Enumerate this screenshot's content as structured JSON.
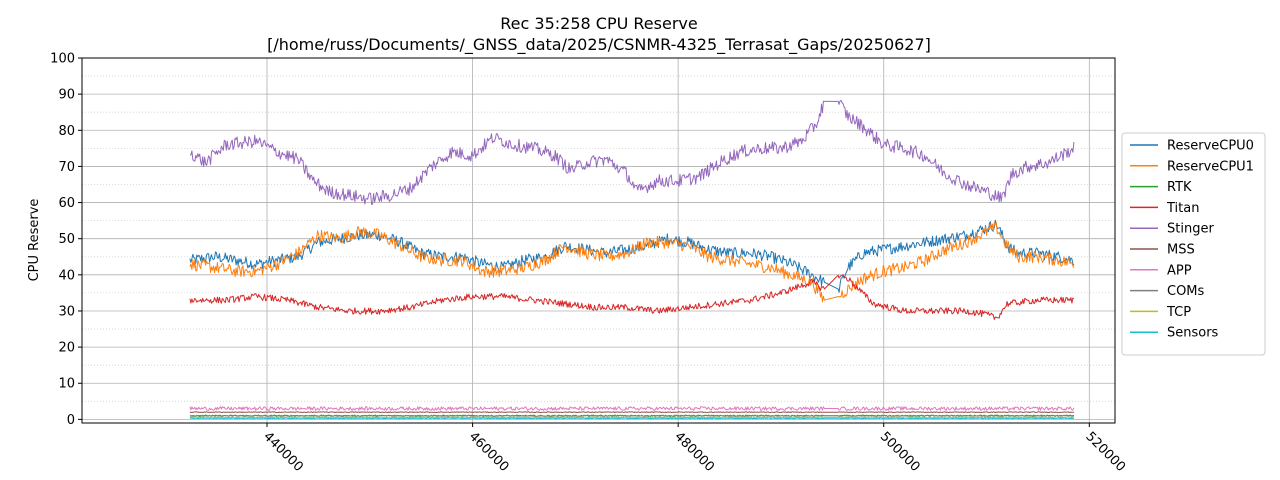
{
  "chart_data": {
    "type": "line",
    "title_line1": "Rec 35:258 CPU Reserve",
    "title_line2": "[/home/russ/Documents/_GNSS_data/2025/CSNMR-4325_Terrasat_Gaps/20250627]",
    "xlabel": "",
    "ylabel": "CPU Reserve",
    "xlim": [
      422000,
      522500
    ],
    "ylim": [
      -1,
      100
    ],
    "x_ticks": [
      440000,
      460000,
      480000,
      500000,
      520000
    ],
    "x_tick_labels": [
      "440000",
      "460000",
      "480000",
      "500000",
      "520000"
    ],
    "y_ticks": [
      0,
      10,
      20,
      30,
      40,
      50,
      60,
      70,
      80,
      90,
      100
    ],
    "y_tick_labels": [
      "0",
      "10",
      "20",
      "30",
      "40",
      "50",
      "60",
      "70",
      "80",
      "90",
      "100"
    ],
    "y_minor_grid_step": 5,
    "grid": true,
    "legend_position": "outside-right",
    "gap": [
      494200,
      495600
    ],
    "series": [
      {
        "name": "ReserveCPU0",
        "color": "#1f77b4",
        "noise": 1.6,
        "x": [
          432500,
          435000,
          437000,
          439000,
          441000,
          443000,
          445000,
          447000,
          449000,
          451000,
          453000,
          455000,
          457000,
          459000,
          461000,
          463000,
          465000,
          467000,
          469000,
          471000,
          473000,
          475000,
          477000,
          479000,
          481000,
          483000,
          485000,
          487000,
          489000,
          491000,
          493000,
          494200,
          495600,
          496500,
          498000,
          500000,
          502000,
          504000,
          506000,
          508000,
          510000,
          511000,
          512000,
          513000,
          515000,
          517000,
          518500
        ],
        "y": [
          44,
          45,
          44,
          43,
          44,
          45,
          49,
          50,
          51,
          51,
          49,
          46,
          45,
          45,
          43,
          42,
          44,
          45,
          48,
          47,
          46,
          47,
          48,
          50,
          49,
          47,
          46,
          46,
          45,
          43,
          40,
          38,
          36,
          42,
          46,
          47,
          48,
          49,
          50,
          51,
          53,
          54,
          48,
          46,
          46,
          45,
          44
        ]
      },
      {
        "name": "ReserveCPU1",
        "color": "#ff7f0e",
        "noise": 1.7,
        "x": [
          432500,
          435000,
          437000,
          439000,
          441000,
          443000,
          445000,
          447000,
          449000,
          451000,
          453000,
          455000,
          457000,
          459000,
          461000,
          463000,
          465000,
          467000,
          469000,
          471000,
          473000,
          475000,
          477000,
          479000,
          481000,
          483000,
          485000,
          487000,
          489000,
          491000,
          493000,
          494200,
          495600,
          496500,
          498000,
          500000,
          502000,
          504000,
          506000,
          508000,
          510000,
          511000,
          512000,
          513000,
          515000,
          517000,
          518500
        ],
        "y": [
          43,
          42,
          41,
          41,
          43,
          46,
          51,
          50,
          52,
          51,
          48,
          45,
          44,
          44,
          41,
          41,
          42,
          44,
          48,
          46,
          45,
          46,
          49,
          49,
          48,
          45,
          44,
          43,
          42,
          40,
          38,
          33,
          34,
          36,
          39,
          41,
          42,
          44,
          47,
          49,
          52,
          53,
          48,
          45,
          45,
          44,
          43
        ]
      },
      {
        "name": "RTK",
        "color": "#2ca02c",
        "noise": 0.2,
        "x": [
          432500,
          494200,
          495600,
          518500
        ],
        "y": [
          1,
          1,
          1,
          1
        ]
      },
      {
        "name": "Titan",
        "color": "#d62728",
        "noise": 0.9,
        "x": [
          432500,
          436000,
          439000,
          442000,
          445000,
          448000,
          451000,
          454000,
          457000,
          460000,
          463000,
          466000,
          469000,
          472000,
          475000,
          478000,
          481000,
          484000,
          487000,
          490000,
          493000,
          494200,
          495600,
          496500,
          499000,
          502000,
          505000,
          508000,
          510000,
          511000,
          512000,
          515000,
          518500
        ],
        "y": [
          33,
          33,
          34,
          33,
          31,
          30,
          30,
          31,
          33,
          34,
          34,
          33,
          32,
          31,
          31,
          30,
          31,
          32,
          33,
          35,
          38,
          36,
          40,
          39,
          32,
          30,
          30,
          30,
          29,
          28,
          32,
          33,
          33
        ]
      },
      {
        "name": "Stinger",
        "color": "#9467bd",
        "noise": 1.8,
        "x": [
          432500,
          434000,
          436000,
          439000,
          441000,
          443000,
          444500,
          446000,
          448000,
          450000,
          452000,
          454000,
          456000,
          458000,
          460000,
          462000,
          464000,
          466000,
          468000,
          469500,
          471000,
          473000,
          475000,
          476000,
          478000,
          480000,
          482000,
          484000,
          486000,
          488000,
          490000,
          492000,
          493500,
          494200,
          495600,
          496500,
          498000,
          500000,
          502000,
          504000,
          506000,
          508000,
          510000,
          511500,
          512500,
          514000,
          516000,
          518500
        ],
        "y": [
          74,
          71,
          76,
          77,
          74,
          72,
          66,
          63,
          62,
          61,
          62,
          64,
          70,
          74,
          73,
          78,
          76,
          75,
          73,
          69,
          71,
          72,
          68,
          63,
          66,
          66,
          67,
          71,
          74,
          75,
          75,
          77,
          82,
          88,
          88,
          84,
          81,
          76,
          75,
          73,
          68,
          65,
          63,
          61,
          68,
          70,
          71,
          75
        ]
      },
      {
        "name": "MSS",
        "color": "#8c564b",
        "noise": 0.1,
        "x": [
          432500,
          518500
        ],
        "y": [
          2,
          2
        ]
      },
      {
        "name": "APP",
        "color": "#e377c2",
        "noise": 0.5,
        "x": [
          432500,
          518500
        ],
        "y": [
          3,
          3
        ]
      },
      {
        "name": "COMs",
        "color": "#7f7f7f",
        "noise": 0.15,
        "x": [
          432500,
          518500
        ],
        "y": [
          1,
          1
        ]
      },
      {
        "name": "TCP",
        "color": "#bcbd22",
        "noise": 0.15,
        "x": [
          432500,
          518500
        ],
        "y": [
          0.5,
          0.5
        ]
      },
      {
        "name": "Sensors",
        "color": "#17becf",
        "noise": 0.1,
        "x": [
          432500,
          518500
        ],
        "y": [
          0.3,
          0.3
        ]
      }
    ]
  }
}
